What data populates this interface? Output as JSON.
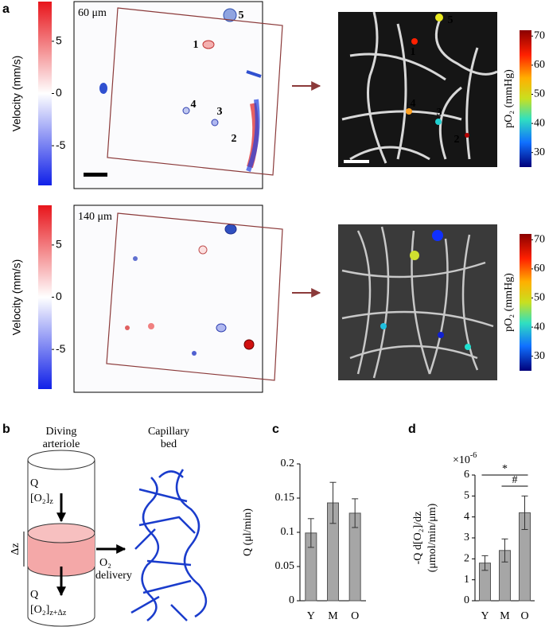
{
  "panel_letters": [
    "a",
    "b",
    "c",
    "d"
  ],
  "rows": [
    {
      "depth": "60 μm",
      "velocity_label": "Velocity (mm/s)",
      "velocity_lim": [
        -8.8,
        8.8
      ],
      "velocity_ticks": [
        5,
        0,
        -5
      ],
      "po2_label": "pO₂ (mmHg)",
      "po2_lim": [
        25,
        72
      ],
      "po2_ticks": [
        70,
        60,
        50,
        40,
        30
      ],
      "vessel_labels": [
        "1",
        "2",
        "3",
        "4",
        "5"
      ]
    },
    {
      "depth": "140 μm",
      "velocity_label": "Velocity (mm/s)",
      "velocity_lim": [
        -8.8,
        8.8
      ],
      "velocity_ticks": [
        5,
        0,
        -5
      ],
      "po2_label": "pO₂ (mmHg)",
      "po2_lim": [
        25,
        72
      ],
      "po2_ticks": [
        70,
        60,
        50,
        40,
        30
      ]
    }
  ],
  "diagram": {
    "arteriole": [
      "Diving",
      "arteriole"
    ],
    "capillary": [
      "Capillary",
      "bed"
    ],
    "flow_top": "Q",
    "conc_top": {
      "main": "[O₂]",
      "sub": "z"
    },
    "dz": "Δz",
    "flow_bottom": "Q",
    "conc_bottom": {
      "main": "[O₂]",
      "sub": "z+Δz"
    },
    "delivery": [
      "O₂",
      "delivery"
    ]
  },
  "chart_data": [
    {
      "type": "bar",
      "ylabel": [
        "Q (μl/min)"
      ],
      "categories": [
        "Y",
        "M",
        "O"
      ],
      "values": [
        0.099,
        0.143,
        0.128
      ],
      "errors": [
        0.021,
        0.03,
        0.021
      ],
      "color": "#a6a6a6",
      "ylim": [
        0,
        0.2
      ],
      "yticks": [
        0,
        0.05,
        0.1,
        0.15,
        0.2
      ]
    },
    {
      "type": "bar",
      "ylabel": [
        "-Q d[O₂]/dz",
        "(μmol/min/μm)"
      ],
      "multiplier": {
        "base": "×10",
        "exp": "-6"
      },
      "categories": [
        "Y",
        "M",
        "O"
      ],
      "values": [
        1.8,
        2.4,
        4.2
      ],
      "errors": [
        0.35,
        0.55,
        0.8
      ],
      "color": "#a6a6a6",
      "ylim": [
        0,
        6
      ],
      "yticks": [
        0,
        1,
        2,
        3,
        4,
        5,
        6
      ],
      "significance": [
        {
          "text": "*",
          "from": 0,
          "to": 2
        },
        {
          "text": "#",
          "from": 1,
          "to": 2
        }
      ]
    }
  ]
}
